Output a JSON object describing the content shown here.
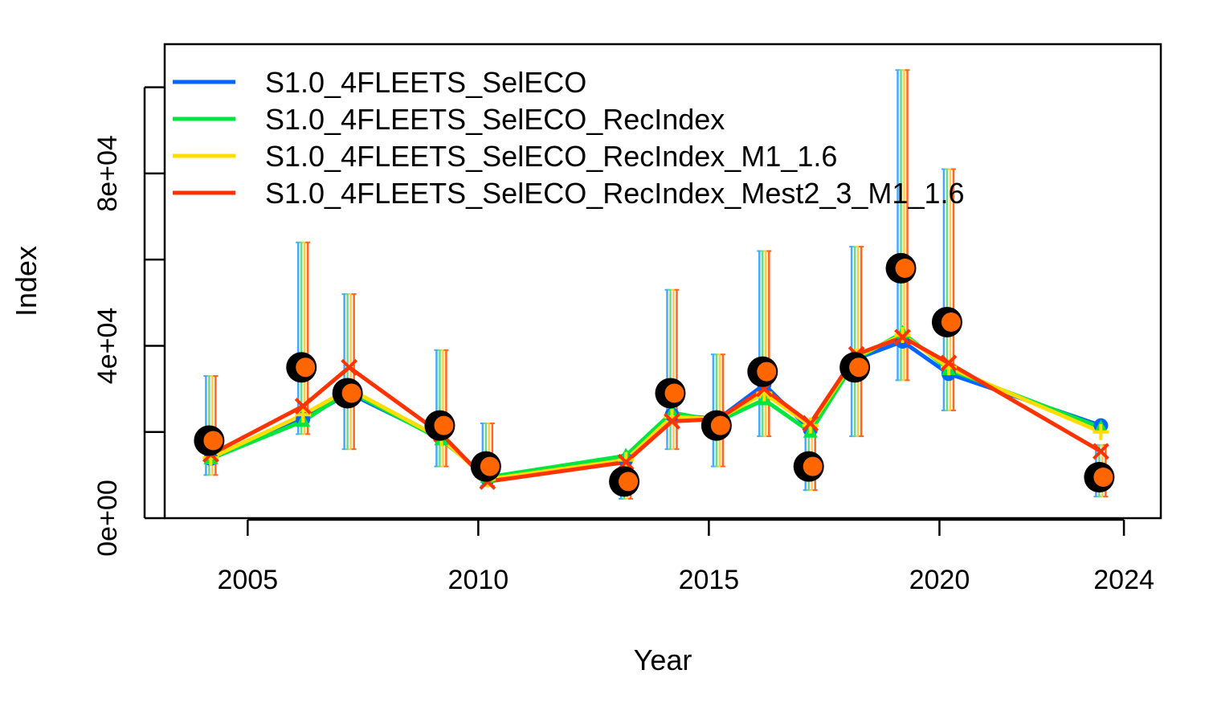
{
  "chart_data": {
    "type": "line",
    "xlabel": "Year",
    "ylabel": "Index",
    "xlim": [
      2003.2,
      2024.8
    ],
    "ylim": [
      0,
      110000
    ],
    "x_ticks": [
      2005,
      2010,
      2015,
      2020,
      2024
    ],
    "x_tick_labels": [
      "2005",
      "2010",
      "2015",
      "2020",
      "2024"
    ],
    "y_ticks": [
      0,
      20000,
      40000,
      60000,
      80000,
      100000
    ],
    "y_tick_labels": [
      "0e+00",
      "",
      "4e+04",
      "",
      "8e+04",
      ""
    ],
    "grid": false,
    "legend_position": "top-left",
    "x": [
      2004.2,
      2006.2,
      2007.2,
      2009.2,
      2010.2,
      2013.2,
      2014.2,
      2015.2,
      2016.2,
      2017.2,
      2018.2,
      2019.2,
      2020.2,
      2023.5
    ],
    "observed": [
      18000,
      35000,
      29000,
      21500,
      12000,
      8500,
      29000,
      21500,
      34000,
      12000,
      35000,
      58000,
      45500,
      9500
    ],
    "interval_lower": [
      10000,
      19500,
      16000,
      12000,
      7500,
      4500,
      16000,
      12000,
      19000,
      6500,
      19000,
      32000,
      25000,
      5000
    ],
    "interval_upper": [
      33000,
      64000,
      52000,
      39000,
      22000,
      14000,
      53000,
      38000,
      62000,
      20000,
      63000,
      104000,
      81000,
      17000
    ],
    "series": [
      {
        "name": "S1.0_4FLEETS_SelECO",
        "color": "#0066ff",
        "values": [
          13800,
          23000,
          29000,
          18500,
          9200,
          13500,
          24000,
          23000,
          31000,
          20500,
          37000,
          41000,
          33500,
          21500
        ]
      },
      {
        "name": "S1.0_4FLEETS_SelECO_RecIndex",
        "color": "#00e640",
        "values": [
          13800,
          22500,
          29500,
          18200,
          9500,
          14500,
          24500,
          22500,
          27500,
          20000,
          37000,
          43000,
          34500,
          21000
        ]
      },
      {
        "name": "S1.0_4FLEETS_SelECO_RecIndex_M1_1.6",
        "color": "#ffdd00",
        "values": [
          14000,
          24000,
          30000,
          18500,
          9000,
          13500,
          23500,
          23000,
          29000,
          21500,
          37500,
          42500,
          35000,
          20000
        ]
      },
      {
        "name": "S1.0_4FLEETS_SelECO_RecIndex_Mest2_3_M1_1.6",
        "color": "#ff3300",
        "values": [
          14800,
          26000,
          35000,
          19500,
          8500,
          13000,
          22500,
          23000,
          30000,
          22000,
          38000,
          42000,
          36000,
          15500
        ]
      }
    ],
    "errorbar_colors": [
      "#44aaff",
      "#66dd88",
      "#ffcc44",
      "#ff6622"
    ],
    "point_fill": "#ff6600",
    "point_outline": "#000000"
  }
}
